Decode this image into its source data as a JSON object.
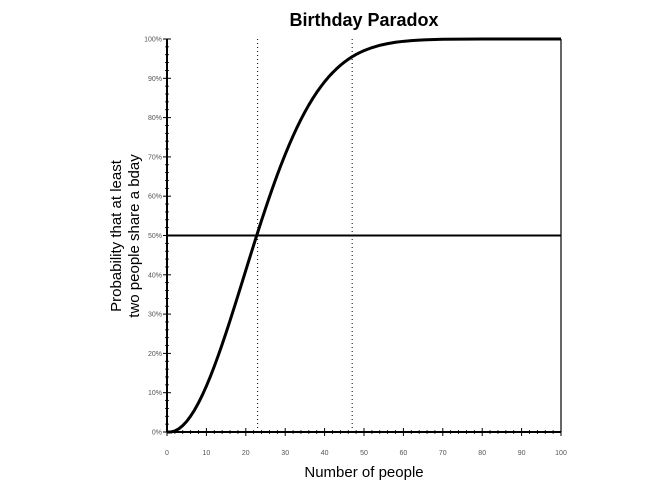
{
  "chart_data": {
    "type": "line",
    "title": "Birthday Paradox",
    "xlabel": "Number of people",
    "ylabel_lines": [
      "Probability that at least",
      "two people share a bday"
    ],
    "xlim": [
      0,
      100
    ],
    "ylim": [
      0,
      1
    ],
    "x_ticks": [
      0,
      10,
      20,
      30,
      40,
      50,
      60,
      70,
      80,
      90,
      100
    ],
    "x_tick_labels": [
      "0",
      "10",
      "20",
      "30",
      "40",
      "50",
      "60",
      "70",
      "80",
      "90",
      "100"
    ],
    "y_ticks": [
      0,
      0.1,
      0.2,
      0.3,
      0.4,
      0.5,
      0.6,
      0.7,
      0.8,
      0.9,
      1.0
    ],
    "y_tick_labels": [
      "0%",
      "10%",
      "20%",
      "30%",
      "40%",
      "50%",
      "60%",
      "70%",
      "80%",
      "90%",
      "100%"
    ],
    "series": [
      {
        "x": [
          0,
          1,
          2,
          3,
          4,
          5,
          6,
          7,
          8,
          9,
          10,
          11,
          12,
          13,
          14,
          15,
          16,
          17,
          18,
          19,
          20,
          21,
          22,
          23,
          24,
          25,
          26,
          27,
          28,
          29,
          30,
          31,
          32,
          33,
          34,
          35,
          36,
          37,
          38,
          39,
          40,
          41,
          42,
          43,
          44,
          45,
          46,
          47,
          48,
          49,
          50,
          52,
          54,
          56,
          58,
          60,
          62,
          64,
          66,
          68,
          70,
          75,
          80,
          85,
          90,
          95,
          100
        ],
        "y": [
          0,
          0,
          0.0027,
          0.0082,
          0.0164,
          0.0271,
          0.0405,
          0.0562,
          0.0743,
          0.0946,
          0.1169,
          0.1411,
          0.167,
          0.1944,
          0.2231,
          0.2529,
          0.2836,
          0.315,
          0.3469,
          0.3791,
          0.4114,
          0.4437,
          0.4757,
          0.5073,
          0.5383,
          0.5687,
          0.5982,
          0.6269,
          0.6545,
          0.681,
          0.7063,
          0.7305,
          0.7533,
          0.775,
          0.7953,
          0.8144,
          0.8322,
          0.8487,
          0.8641,
          0.8782,
          0.8912,
          0.9032,
          0.914,
          0.9239,
          0.9329,
          0.941,
          0.9483,
          0.9548,
          0.9606,
          0.9658,
          0.9704,
          0.978,
          0.9839,
          0.9883,
          0.9917,
          0.9941,
          0.9959,
          0.9972,
          0.9981,
          0.9987,
          0.9992,
          0.9997,
          0.99991,
          0.99998,
          0.999994,
          0.999999,
          1.0
        ]
      }
    ],
    "reference_lines": {
      "horizontal_y": [
        0.5
      ],
      "vertical_dotted_x": [
        23,
        47
      ]
    },
    "grid": false
  }
}
